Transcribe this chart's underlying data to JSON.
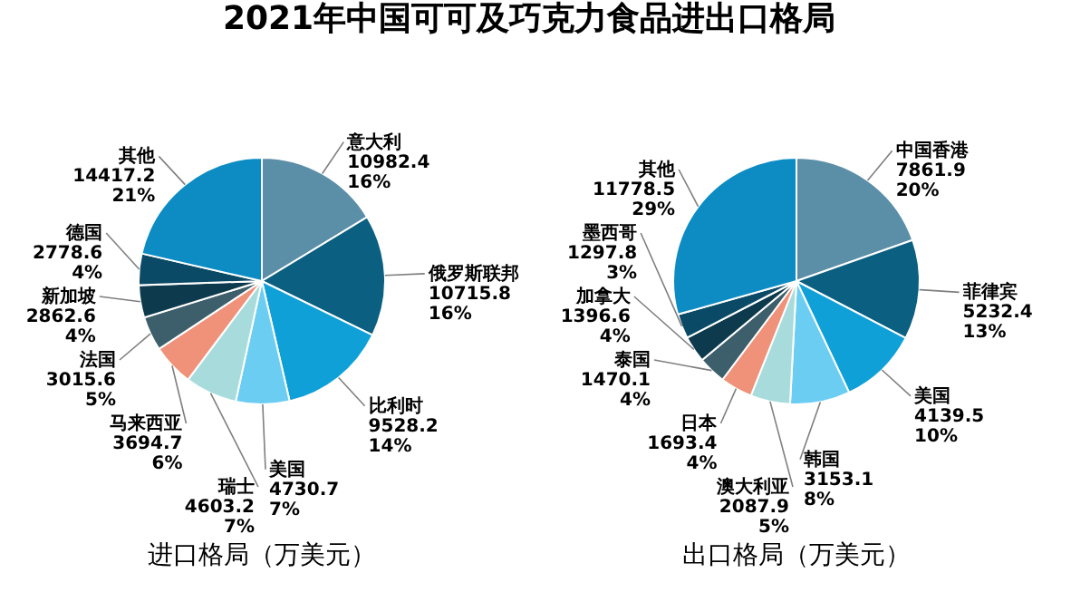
{
  "chart_data": [
    {
      "type": "pie",
      "title": "2021年中国可可及巧克力食品进出口格局",
      "xlabel": "进口格局（万美元）",
      "categories": [
        "意大利",
        "俄罗斯联邦",
        "比利时",
        "美国",
        "瑞士",
        "马来西亚",
        "法国",
        "新加坡",
        "德国",
        "其他"
      ],
      "values": [
        10982.4,
        10715.8,
        9528.2,
        4730.7,
        4603.2,
        3694.7,
        3015.6,
        2862.6,
        2778.6,
        14417.2
      ],
      "value_labels": [
        "10982.4\n16%",
        "10715.8\n16%",
        "9528.2\n14%",
        "4730.7\n7%",
        "4603.2\n7%",
        "3694.7\n6%",
        "3015.6\n5%",
        "2862.6\n4%",
        "2778.6\n4%",
        "14417.2\n21%"
      ],
      "colors": [
        "#5b8fa8",
        "#0b5f80",
        "#10a0d8",
        "#6ccdf2",
        "#a8dcdc",
        "#f0917a",
        "#3d5e6b",
        "#0d3a4d",
        "#0b4a66",
        "#0d8cc4"
      ]
    },
    {
      "type": "pie",
      "xlabel": "出口格局（万美元）",
      "categories": [
        "中国香港",
        "菲律宾",
        "美国",
        "韩国",
        "澳大利亚",
        "日本",
        "泰国",
        "加拿大",
        "墨西哥",
        "其他"
      ],
      "values": [
        7861.9,
        5232.4,
        4139.5,
        3153.1,
        2087.9,
        1693.4,
        1470.1,
        1396.6,
        1297.8,
        11778.5
      ],
      "value_labels": [
        "7861.9\n20%",
        "5232.4\n13%",
        "4139.5\n10%",
        "3153.1\n8%",
        "2087.9\n5%",
        "1693.4\n4%",
        "1470.1\n4%",
        "1396.6\n4%",
        "1297.8\n3%",
        "11778.5\n29%"
      ],
      "colors": [
        "#5b8fa8",
        "#0b5f80",
        "#10a0d8",
        "#6ccdf2",
        "#a8dcdc",
        "#f0917a",
        "#3d5e6b",
        "#0d3a4d",
        "#0b4a66",
        "#0d8cc4"
      ]
    }
  ]
}
